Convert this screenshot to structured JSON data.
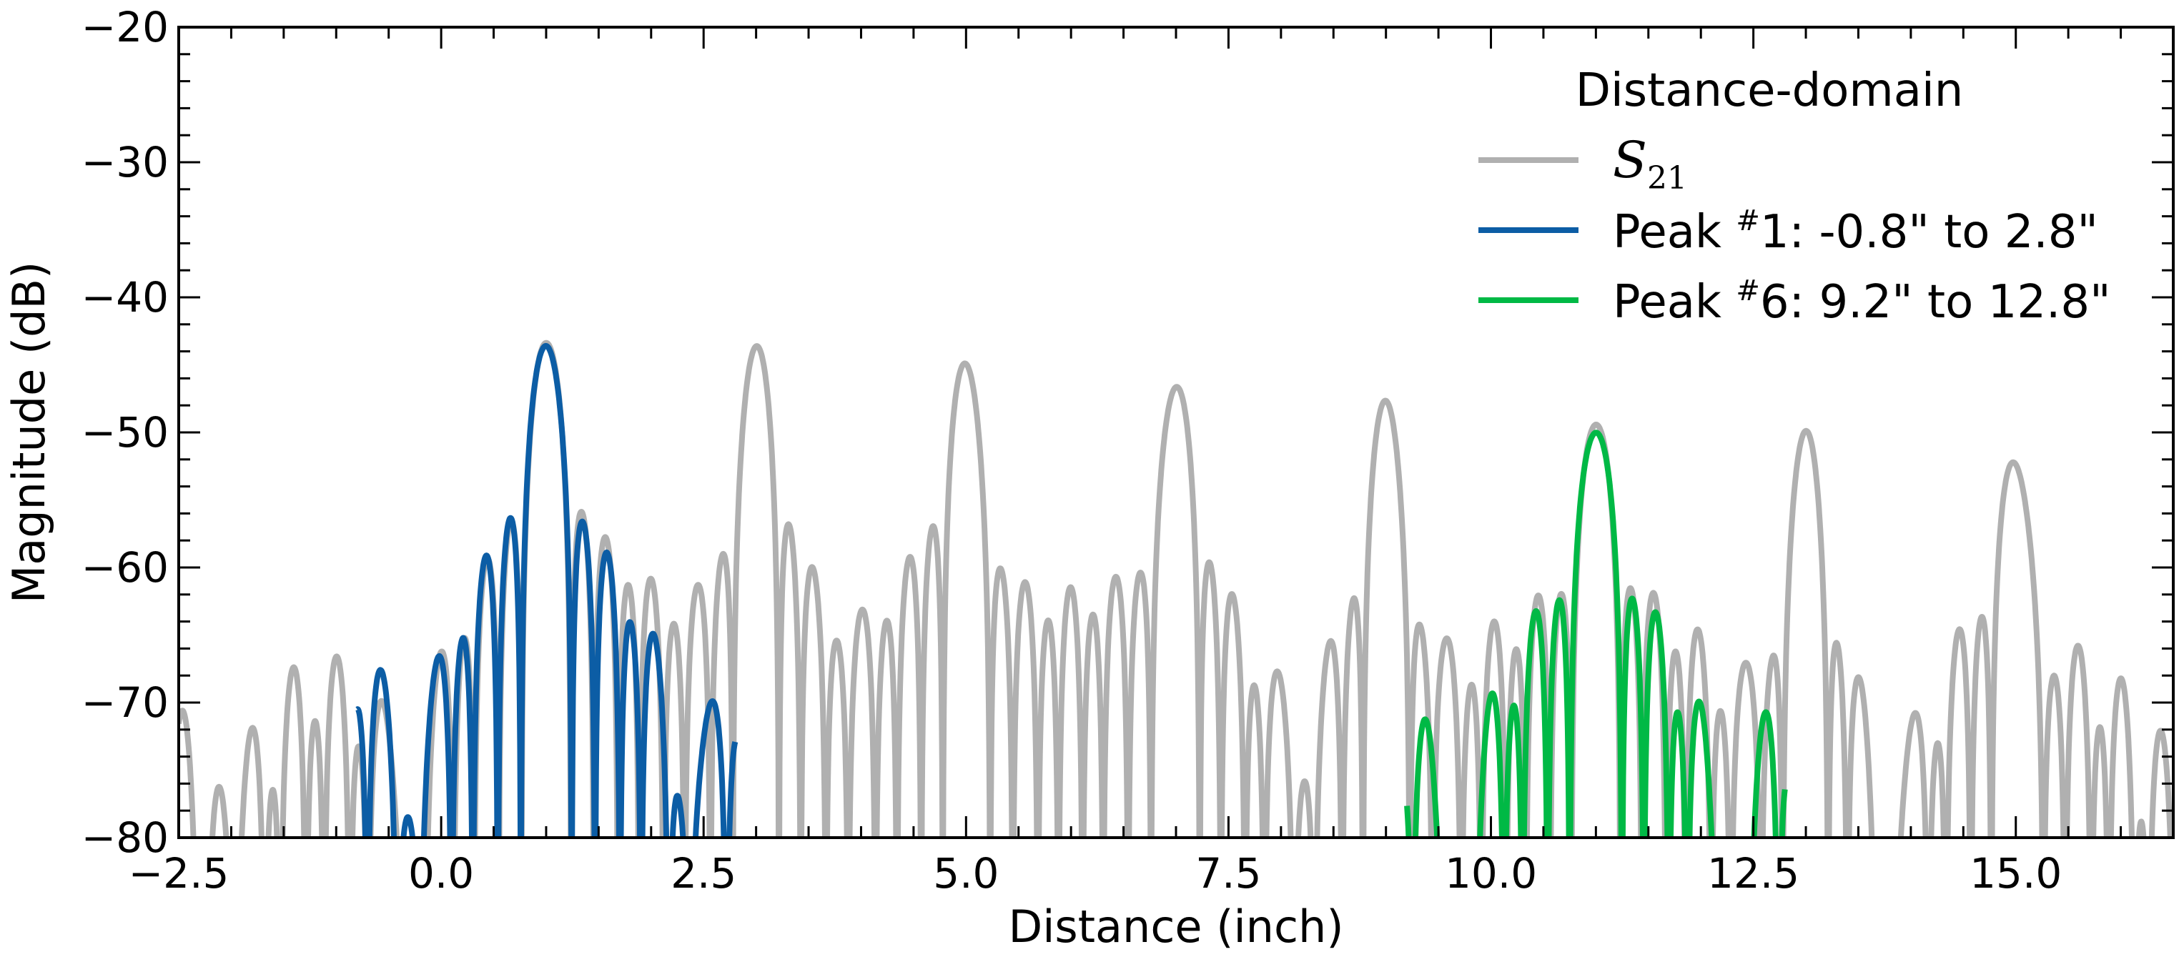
{
  "chart_data": {
    "type": "line",
    "xlabel": "Distance (inch)",
    "ylabel": "Magnitude (dB)",
    "xlim": [
      -2.5,
      16.5
    ],
    "ylim": [
      -80,
      -20
    ],
    "xticks": [
      -2.5,
      0.0,
      2.5,
      5.0,
      7.5,
      10.0,
      12.5,
      15.0
    ],
    "xtick_labels": [
      "−2.5",
      "0.0",
      "2.5",
      "5.0",
      "7.5",
      "10.0",
      "12.5",
      "15.0"
    ],
    "yticks": [
      -80,
      -70,
      -60,
      -50,
      -40,
      -30,
      -20
    ],
    "ytick_labels": [
      "−80",
      "−70",
      "−60",
      "−50",
      "−40",
      "−30",
      "−20"
    ],
    "grid": false,
    "legend": {
      "title": "Distance-domain",
      "placement": "top-right",
      "entries": [
        {
          "symbol": "S",
          "subscript": "21",
          "color": "#b0b0b0"
        },
        {
          "prefix": "Peak ",
          "sup": "#",
          "label": "1: -0.8\" to 2.8\"",
          "color": "#0c5da5"
        },
        {
          "prefix": "Peak ",
          "sup": "#",
          "label": "6: 9.2\" to 12.8\"",
          "color": "#00b945"
        }
      ]
    },
    "series": [
      {
        "color": "#b0b0b0",
        "peaks": [
          {
            "x": 1.0,
            "y": -43.5
          },
          {
            "x": 3.0,
            "y": -44.5
          },
          {
            "x": 5.0,
            "y": -45.6
          },
          {
            "x": 7.0,
            "y": -47.1
          },
          {
            "x": 9.0,
            "y": -48.6
          },
          {
            "x": 11.0,
            "y": -49.8
          },
          {
            "x": 13.0,
            "y": -51.2
          },
          {
            "x": 15.0,
            "y": -52.6
          }
        ],
        "x_range": [
          -2.5,
          16.5
        ]
      },
      {
        "color": "#0c5da5",
        "peaks": [
          {
            "x": 1.0,
            "y": -43.5
          }
        ],
        "x_range": [
          -0.8,
          2.8
        ]
      },
      {
        "color": "#00b945",
        "peaks": [
          {
            "x": 11.0,
            "y": -49.8
          }
        ],
        "x_range": [
          9.2,
          12.8
        ]
      }
    ]
  }
}
